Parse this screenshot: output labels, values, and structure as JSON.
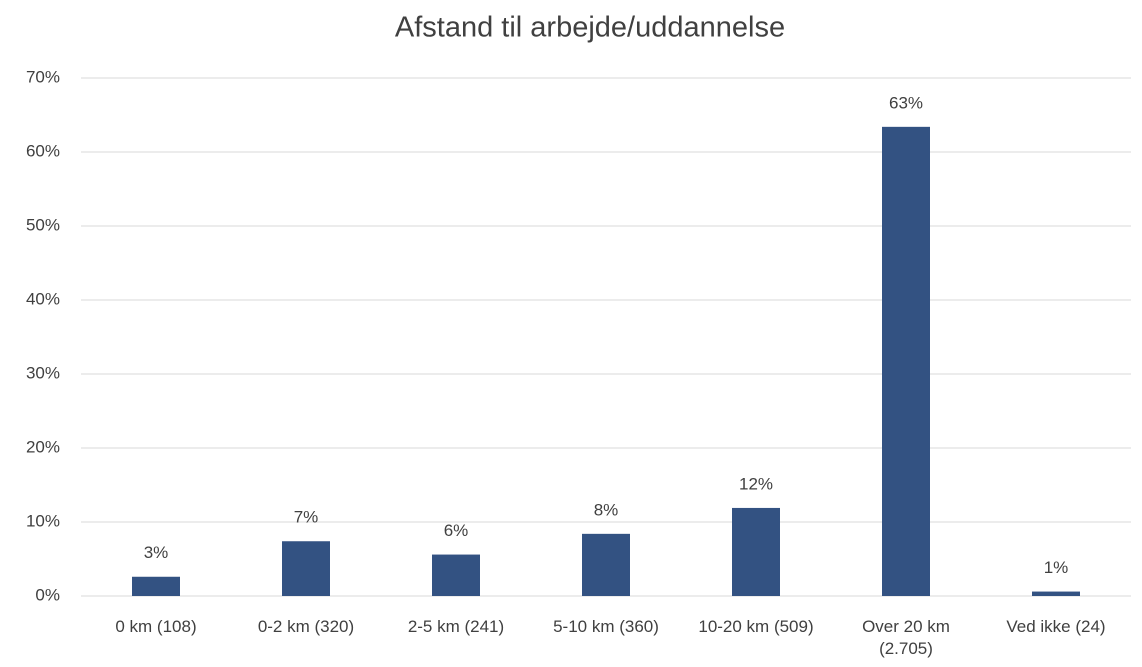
{
  "chart_data": {
    "type": "bar",
    "title": "Afstand til arbejde/uddannelse",
    "categories": [
      "0 km (108)",
      "0-2 km (320)",
      "2-5 km (241)",
      "5-10 km (360)",
      "10-20 km (509)",
      "Over 20 km (2.705)",
      "Ved ikke (24)"
    ],
    "values": [
      2.6,
      7.4,
      5.6,
      8.4,
      11.9,
      63.4,
      0.6
    ],
    "value_labels": [
      "3%",
      "7%",
      "6%",
      "8%",
      "12%",
      "63%",
      "1%"
    ],
    "color": "#335282",
    "ylim": [
      0,
      70
    ],
    "yticks": [
      {
        "value": 0,
        "label": "0%"
      },
      {
        "value": 10,
        "label": "10%"
      },
      {
        "value": 20,
        "label": "20%"
      },
      {
        "value": 30,
        "label": "30%"
      },
      {
        "value": 40,
        "label": "40%"
      },
      {
        "value": 50,
        "label": "50%"
      },
      {
        "value": 60,
        "label": "60%"
      },
      {
        "value": 70,
        "label": "70%"
      }
    ],
    "grid": true
  }
}
